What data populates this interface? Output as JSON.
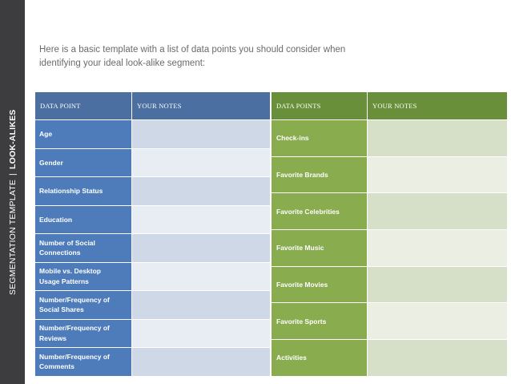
{
  "sidebar": {
    "light_text": "SEGMENTATION TEMPLATE",
    "separator": "|",
    "bold_text": "LOOK-ALIKES"
  },
  "intro": {
    "line1": "Here is a basic template with a list of data points you should consider when",
    "line2": "identifying your ideal look-alike segment:"
  },
  "left_table": {
    "headers": [
      "DATA POINT",
      "YOUR NOTES"
    ],
    "rows": [
      [
        "Age"
      ],
      [
        "Gender"
      ],
      [
        "Relationship Status"
      ],
      [
        "Education"
      ],
      [
        "Number of Social",
        "Connections"
      ],
      [
        "Mobile vs. Desktop",
        "Usage Patterns"
      ],
      [
        "Number/Frequency of",
        "Social Shares"
      ],
      [
        "Number/Frequency of",
        "Reviews"
      ],
      [
        "Number/Frequency of",
        "Comments"
      ]
    ]
  },
  "right_table": {
    "headers": [
      "DATA POINTS",
      "YOUR NOTES"
    ],
    "rows": [
      "Check-ins",
      "Favorite Brands",
      "Favorite Celebrities",
      "Favorite Music",
      "Favorite Movies",
      "Favorite Sports",
      "Activities"
    ]
  },
  "colors": {
    "sidebar": "#3d3d40",
    "left_header": "#4a6fa0",
    "left_label": "#4e7cba",
    "right_header": "#6a8f3a",
    "right_label": "#88ac4e"
  }
}
